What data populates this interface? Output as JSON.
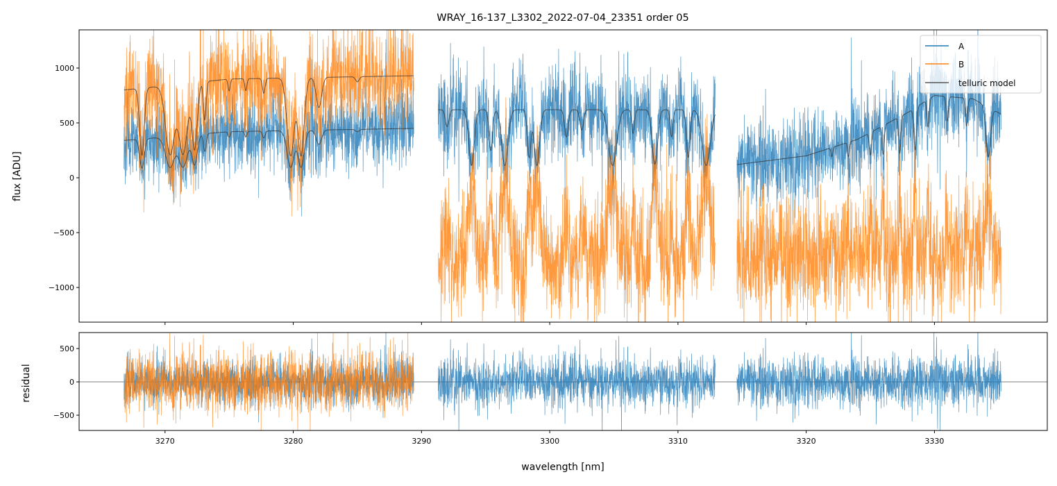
{
  "chart_data": {
    "type": "line",
    "title": "WRAY_16-137_L3302_2022-07-04_23351  order 05",
    "xlabel": "wavelength [nm]",
    "panels": [
      {
        "name": "top",
        "ylabel": "flux [ADU]",
        "ylim": [
          -1316,
          1348
        ],
        "yticks": [
          -1000,
          -500,
          0,
          500,
          1000
        ],
        "ytick_labels": [
          "−1000",
          "−500",
          "0",
          "500",
          "1000"
        ]
      },
      {
        "name": "bottom",
        "ylabel": "residual",
        "ylim": [
          -729,
          740
        ],
        "yticks": [
          -500,
          0,
          500
        ],
        "ytick_labels": [
          "−500",
          "0",
          "500"
        ]
      }
    ],
    "xlim": [
      3263.3,
      3338.8
    ],
    "xticks": [
      3270,
      3280,
      3290,
      3300,
      3310,
      3320,
      3330
    ],
    "xtick_labels": [
      "3270",
      "3280",
      "3290",
      "3300",
      "3310",
      "3320",
      "3330"
    ],
    "legend": {
      "placement": "top-right",
      "entries": [
        "A",
        "B",
        "telluric model"
      ]
    },
    "colors": {
      "A": "#1f77b4",
      "B": "#ff7f0e",
      "telluric": "#333333"
    },
    "segments": [
      {
        "range": [
          3266.8,
          3289.4
        ],
        "A_continuum": [
          [
            3266.8,
            340
          ],
          [
            3275,
            420
          ],
          [
            3289.4,
            450
          ]
        ],
        "B_continuum": [
          [
            3266.8,
            800
          ],
          [
            3275,
            900
          ],
          [
            3289.4,
            930
          ]
        ],
        "B_mode": "positive",
        "noise_A": 170,
        "noise_B": 230
      },
      {
        "range": [
          3291.3,
          3312.9
        ],
        "A_continuum": [
          [
            3291.3,
            620
          ],
          [
            3312.9,
            620
          ]
        ],
        "B_level": -760,
        "B_mode": "inverted",
        "noise_A": 200,
        "noise_B": 260
      },
      {
        "range": [
          3314.6,
          3335.2
        ],
        "A_continuum": [
          [
            3314.6,
            120
          ],
          [
            3320,
            200
          ],
          [
            3324,
            350
          ],
          [
            3328,
            600
          ],
          [
            3330,
            750
          ],
          [
            3333,
            720
          ],
          [
            3335.2,
            580
          ]
        ],
        "B_level": -700,
        "B_mode": "inverted",
        "noise_A": 200,
        "noise_B": 270
      }
    ],
    "telluric_lines": [
      [
        3268.2,
        0.75,
        0.25
      ],
      [
        3270.4,
        0.75,
        0.5
      ],
      [
        3271.4,
        0.75,
        0.5
      ],
      [
        3272.3,
        0.7,
        0.3
      ],
      [
        3273.1,
        0.4,
        0.15
      ],
      [
        3275.0,
        0.12,
        0.12
      ],
      [
        3276.3,
        0.12,
        0.12
      ],
      [
        3277.7,
        0.15,
        0.15
      ],
      [
        3279.8,
        0.78,
        0.4
      ],
      [
        3280.6,
        0.78,
        0.35
      ],
      [
        3282.0,
        0.3,
        0.3
      ],
      [
        3285.0,
        0.05,
        0.2
      ],
      [
        3292.0,
        0.25,
        0.2
      ],
      [
        3293.9,
        0.82,
        0.3
      ],
      [
        3295.4,
        0.6,
        0.2
      ],
      [
        3296.5,
        0.82,
        0.35
      ],
      [
        3298.4,
        0.7,
        0.2
      ],
      [
        3299.0,
        0.82,
        0.3
      ],
      [
        3301.3,
        0.4,
        0.2
      ],
      [
        3302.5,
        0.3,
        0.2
      ],
      [
        3304.9,
        0.82,
        0.45
      ],
      [
        3306.5,
        0.35,
        0.15
      ],
      [
        3308.2,
        0.8,
        0.3
      ],
      [
        3309.5,
        0.4,
        0.15
      ],
      [
        3310.8,
        0.7,
        0.2
      ],
      [
        3312.2,
        0.82,
        0.45
      ],
      [
        3322.0,
        0.3,
        0.1
      ],
      [
        3323.3,
        0.4,
        0.1
      ],
      [
        3325.0,
        0.5,
        0.12
      ],
      [
        3326.0,
        0.55,
        0.12
      ],
      [
        3327.3,
        0.6,
        0.12
      ],
      [
        3328.5,
        0.6,
        0.15
      ],
      [
        3329.5,
        0.35,
        0.12
      ],
      [
        3331.0,
        0.3,
        0.12
      ],
      [
        3332.5,
        0.35,
        0.12
      ],
      [
        3334.2,
        0.7,
        0.25
      ]
    ]
  }
}
